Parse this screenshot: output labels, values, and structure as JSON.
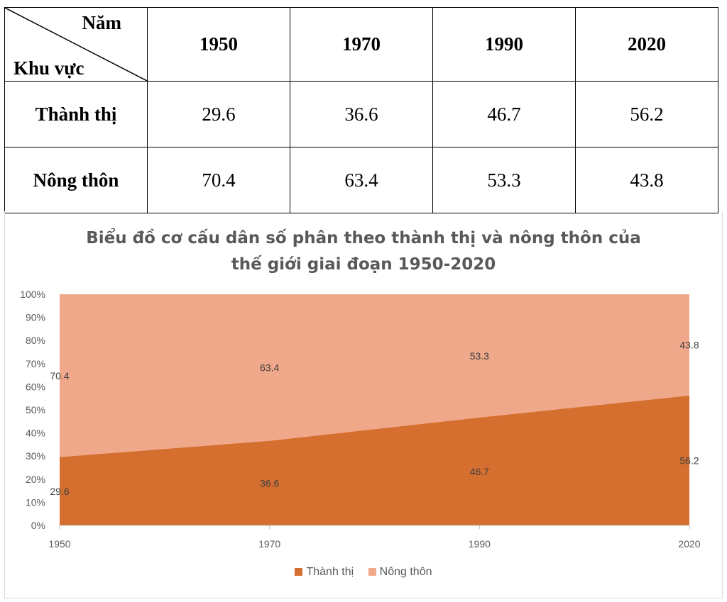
{
  "table": {
    "corner_top": "Năm",
    "corner_bottom": "Khu vực",
    "years": [
      "1950",
      "1970",
      "1990",
      "2020"
    ],
    "rows": [
      {
        "label": "Thành thị",
        "values": [
          "29.6",
          "36.6",
          "46.7",
          "56.2"
        ]
      },
      {
        "label": "Nông thôn",
        "values": [
          "70.4",
          "63.4",
          "53.3",
          "43.8"
        ]
      }
    ]
  },
  "chart_data": {
    "type": "area",
    "stacked": true,
    "title_line1": "Biểu đồ cơ cấu dân số phân theo thành thị và nông thôn của",
    "title_line2": "thế giới giai đoạn 1950-2020",
    "x": [
      "1950",
      "1970",
      "1990",
      "2020"
    ],
    "series": [
      {
        "name": "Thành thị",
        "values": [
          29.6,
          36.6,
          46.7,
          56.2
        ],
        "color": "#d56f2f"
      },
      {
        "name": "Nông thôn",
        "values": [
          70.4,
          63.4,
          53.3,
          43.8
        ],
        "color": "#f0a88a"
      }
    ],
    "ylim": [
      0,
      100
    ],
    "yticks": [
      "0%",
      "10%",
      "20%",
      "30%",
      "40%",
      "50%",
      "60%",
      "70%",
      "80%",
      "90%",
      "100%"
    ],
    "legend": "bottom"
  }
}
